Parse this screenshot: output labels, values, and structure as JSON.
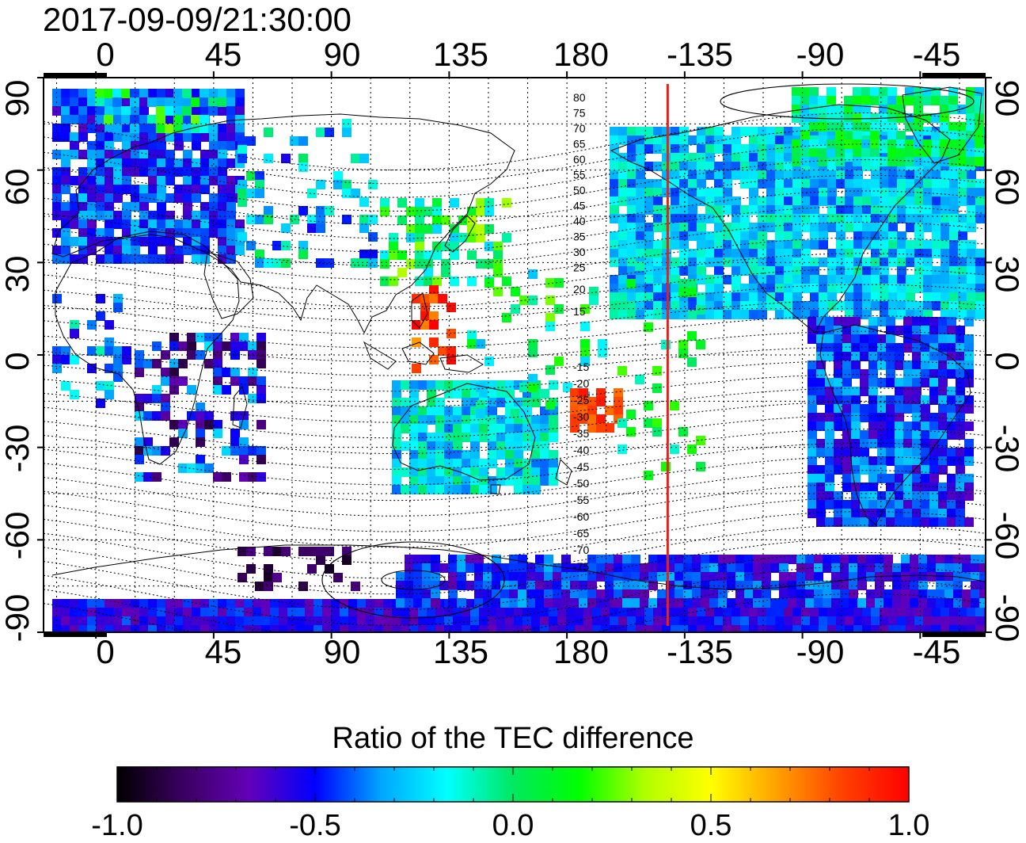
{
  "title": "2017-09-09/21:30:00",
  "map": {
    "top_axis_ticks": [
      "0",
      "45",
      "90",
      "135",
      "180",
      "-135",
      "-90",
      "-45"
    ],
    "bottom_axis_ticks": [
      "0",
      "45",
      "90",
      "135",
      "180",
      "-135",
      "-90",
      "-45"
    ],
    "left_axis_ticks": [
      "90",
      "60",
      "30",
      "0",
      "-30",
      "-60",
      "-90"
    ],
    "right_axis_ticks": [
      "90",
      "60",
      "30",
      "0",
      "-30",
      "-60",
      "-90"
    ],
    "x_range_deg": [
      -20,
      340
    ],
    "y_range_deg": [
      -90,
      90
    ],
    "graticule_step_deg": 15,
    "grid": "dotted",
    "dip_latitude_labels": [
      "80",
      "75",
      "70",
      "65",
      "60",
      "55",
      "50",
      "45",
      "40",
      "35",
      "30",
      "25",
      "20",
      "15",
      "-15",
      "-20",
      "-25",
      "-30",
      "-35",
      "-40",
      "-45",
      "-50",
      "-55",
      "-60",
      "-65",
      "-70",
      "-75"
    ],
    "terminator_line_longitude": -141.5,
    "terminator_color": "#e8201c"
  },
  "colorbar": {
    "label": "Ratio of the TEC difference",
    "tick_labels": [
      "-1.0",
      "-0.5",
      "0.0",
      "0.5",
      "1.0"
    ],
    "range": [
      -1.0,
      1.0
    ],
    "colors": [
      "#000000",
      "#3a0060",
      "#6400b8",
      "#0000ff",
      "#00a6ff",
      "#00ffff",
      "#00e860",
      "#00ff00",
      "#b0ff00",
      "#ffff00",
      "#ffa000",
      "#ff4000",
      "#ff0000"
    ]
  }
}
